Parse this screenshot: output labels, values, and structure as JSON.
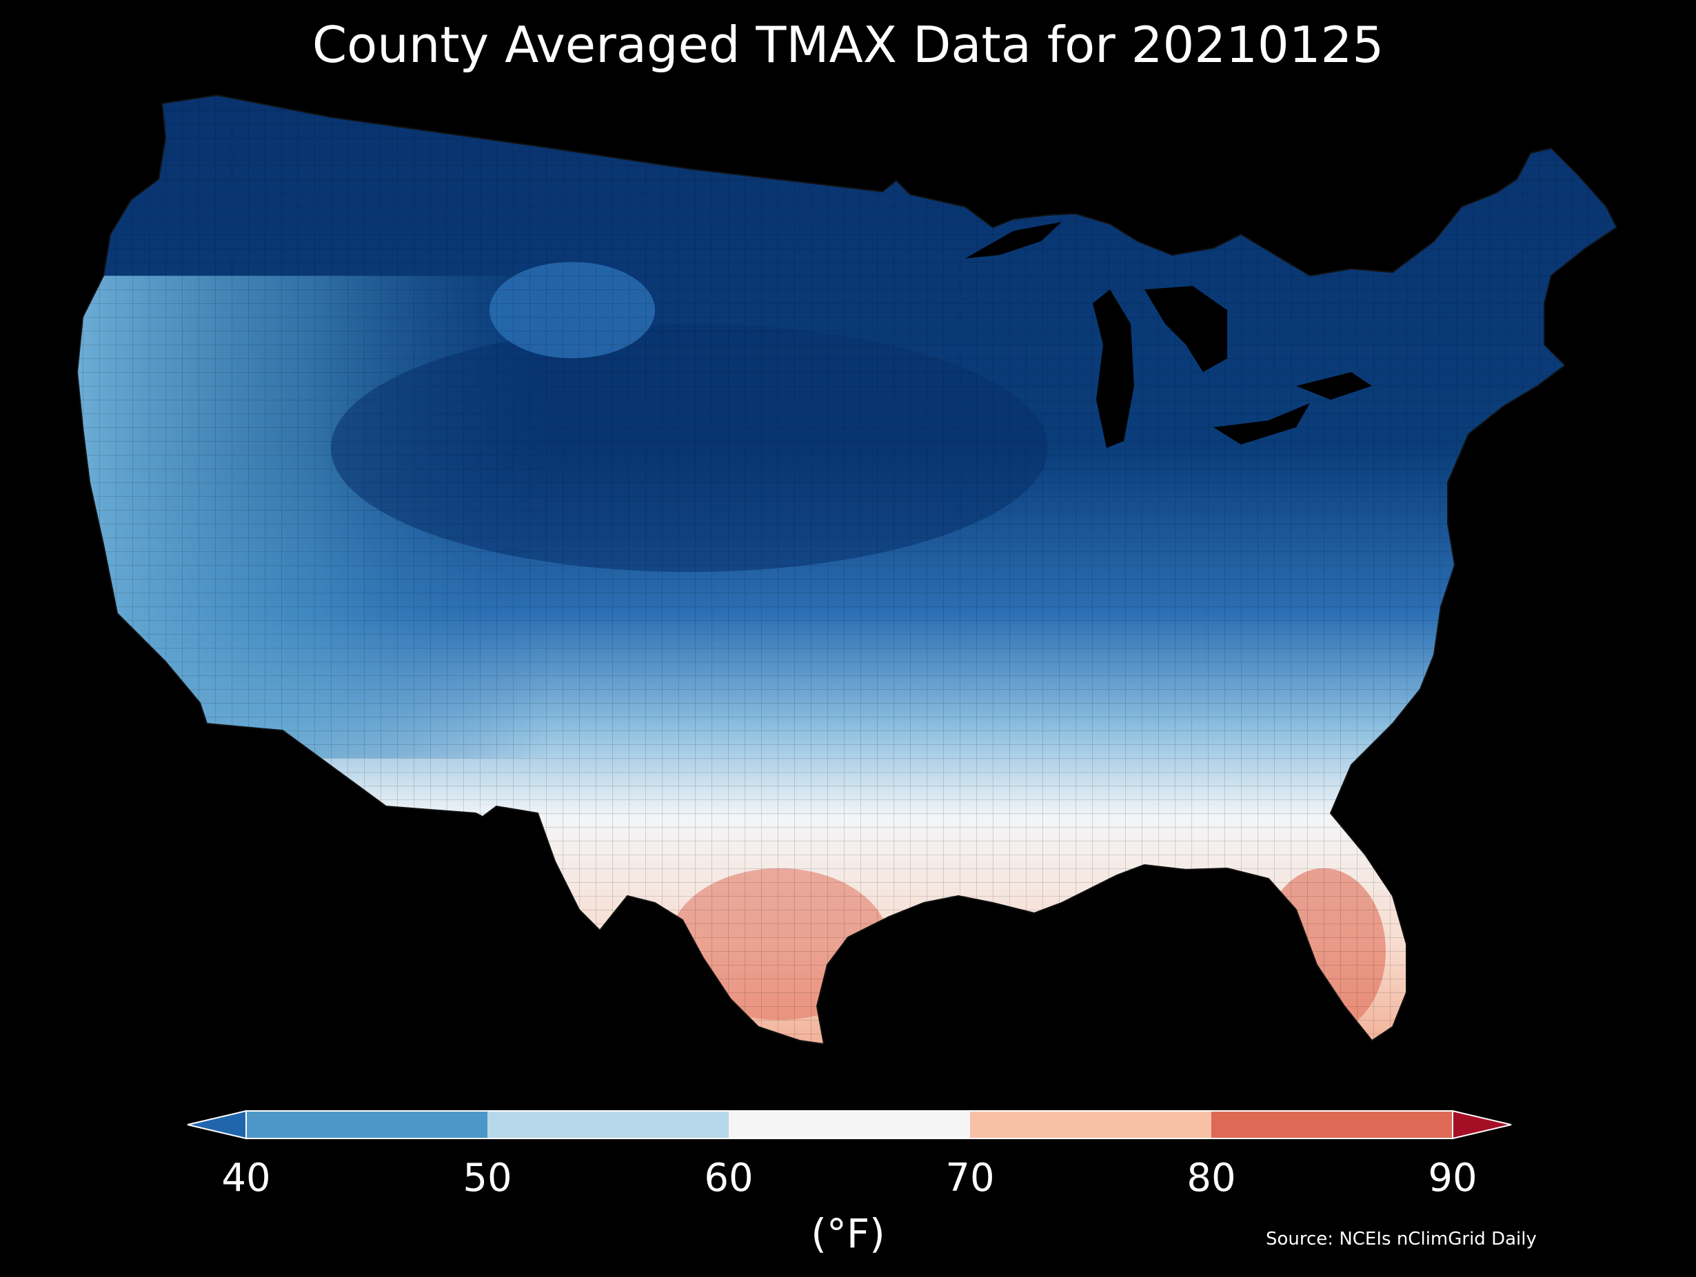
{
  "title": "County Averaged TMAX Data for 20210125",
  "colorbar": {
    "ticks": [
      "40",
      "50",
      "60",
      "70",
      "80",
      "90"
    ],
    "unit": "(°F)",
    "bins": [
      {
        "range": "<40",
        "color": "#2166ac"
      },
      {
        "range": "40-50",
        "color": "#4d97c8"
      },
      {
        "range": "50-60",
        "color": "#b7d7ea"
      },
      {
        "range": "60-70",
        "color": "#f5f5f5"
      },
      {
        "range": "70-80",
        "color": "#f8c1a6"
      },
      {
        "range": "80-90",
        "color": "#de6a56"
      },
      {
        "range": ">90",
        "color": "#a50f26"
      }
    ]
  },
  "source": "Source: NCEIs nClimGrid Daily",
  "chart_data": {
    "type": "heatmap",
    "title": "County Averaged TMAX Data for 20210125",
    "legend_placement": "bottom",
    "legend_label": "(°F)",
    "value_range": [
      40,
      90
    ],
    "bin_edges": [
      40,
      50,
      60,
      70,
      80,
      90
    ]
  }
}
